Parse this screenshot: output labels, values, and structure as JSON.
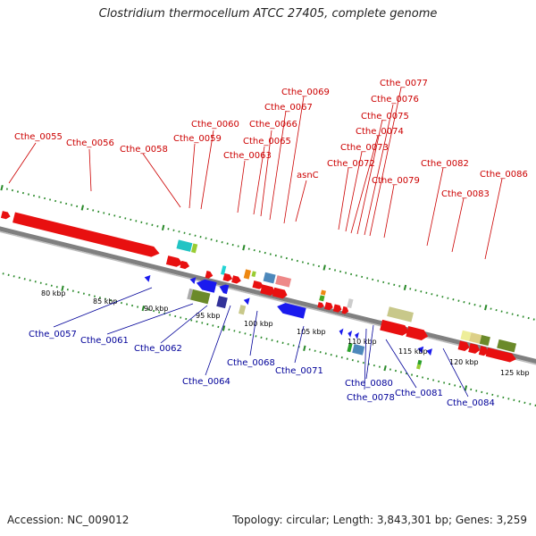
{
  "title": "Clostridium thermocellum ATCC 27405, complete genome",
  "footer": {
    "accession": "Accession: NC_009012",
    "stats": "Topology: circular; Length: 3,843,301 bp; Genes: 3,259"
  },
  "colors": {
    "backbone": "#808080",
    "tick": "#2a8a2a",
    "top_label": "#cc0000",
    "bottom_label": "#000099",
    "forward_gene": "#ee0000",
    "reverse_gene": "#0000ee"
  },
  "scale_labels": [
    "80 kbp",
    "85 kbp",
    "90 kbp",
    "95 kbp",
    "100 kbp",
    "105 kbp",
    "110 kbp",
    "115 kbp",
    "120 kbp",
    "125 kbp"
  ],
  "top_labels": [
    "Cthe_0055",
    "Cthe_0056",
    "Cthe_0058",
    "Cthe_0059",
    "Cthe_0060",
    "Cthe_0063",
    "Cthe_0065",
    "Cthe_0066",
    "Cthe_0067",
    "Cthe_0069",
    "asnC",
    "Cthe_0072",
    "Cthe_0073",
    "Cthe_0074",
    "Cthe_0075",
    "Cthe_0076",
    "Cthe_0077",
    "Cthe_0079",
    "Cthe_0082",
    "Cthe_0083",
    "Cthe_0086"
  ],
  "bottom_labels": [
    "Cthe_0057",
    "Cthe_0061",
    "Cthe_0062",
    "Cthe_0064",
    "Cthe_0068",
    "Cthe_0071",
    "Cthe_0078",
    "Cthe_0080",
    "Cthe_0081",
    "Cthe_0084"
  ]
}
